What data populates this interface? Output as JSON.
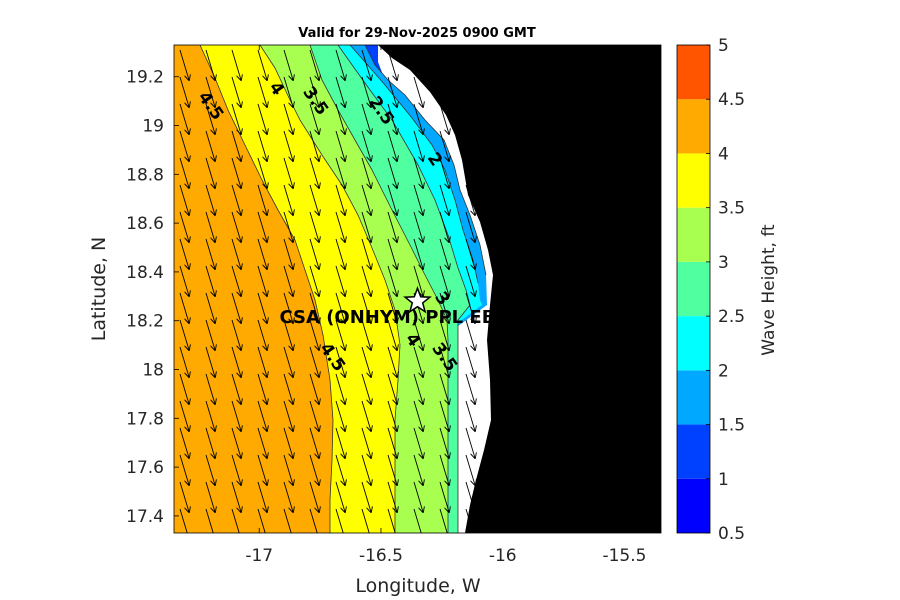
{
  "chart_data": {
    "type": "heatmap",
    "title": "Valid for 29-Nov-2025 0900 GMT",
    "xlabel": "Longitude, W",
    "ylabel": "Latitude, N",
    "xlim": [
      -17.35,
      -15.35
    ],
    "ylim": [
      17.33,
      19.33
    ],
    "xticks": [
      -17,
      -16.5,
      -16,
      -15.5
    ],
    "xtick_labels": [
      "-17",
      "-16.5",
      "-16",
      "-15.5"
    ],
    "yticks": [
      17.4,
      17.6,
      17.8,
      18,
      18.2,
      18.4,
      18.6,
      18.8,
      19,
      19.2
    ],
    "ytick_labels": [
      "17.4",
      "17.6",
      "17.8",
      "18",
      "18.2",
      "18.4",
      "18.6",
      "18.8",
      "19",
      "19.2"
    ],
    "colorbar": {
      "label": "Wave Height, ft",
      "levels": [
        0.5,
        1,
        1.5,
        2,
        2.5,
        3,
        3.5,
        4,
        4.5,
        5
      ],
      "tick_labels": [
        "0.5",
        "1",
        "1.5",
        "2",
        "2.5",
        "3",
        "3.5",
        "4",
        "4.5",
        "5"
      ],
      "colors": [
        "#0000ff",
        "#0040ff",
        "#00a8ff",
        "#00ffff",
        "#50ffa0",
        "#a8ff50",
        "#ffff00",
        "#ffaa00",
        "#ff5500"
      ]
    },
    "colors": {
      "land": "#000000",
      "nodata": "#ffffff",
      "wave_2": "#00ffff",
      "wave_2_5": "#50ffa0",
      "wave_3": "#a8ff50",
      "wave_3_5": "#ffff00",
      "wave_4": "#ffaa00",
      "wave_4_5": "#ff5500",
      "wave_1_5": "#00a8ff",
      "wave_1": "#0040ff"
    },
    "contour_labels": [
      {
        "text": "4.5",
        "lon": -17.2,
        "lat": 19.08
      },
      {
        "text": "4",
        "lon": -16.93,
        "lat": 19.15
      },
      {
        "text": "3.5",
        "lon": -16.77,
        "lat": 19.1
      },
      {
        "text": "2.5",
        "lon": -16.5,
        "lat": 19.06
      },
      {
        "text": "2",
        "lon": -16.28,
        "lat": 18.86
      },
      {
        "text": "3",
        "lon": -16.25,
        "lat": 18.29
      },
      {
        "text": "4.5",
        "lon": -16.7,
        "lat": 18.05
      },
      {
        "text": "4",
        "lon": -16.37,
        "lat": 18.12
      },
      {
        "text": "3.5",
        "lon": -16.24,
        "lat": 18.05
      }
    ],
    "station": {
      "name": "CSA (ONHYM) PPL EBS",
      "lon": -16.35,
      "lat": 18.28
    }
  }
}
